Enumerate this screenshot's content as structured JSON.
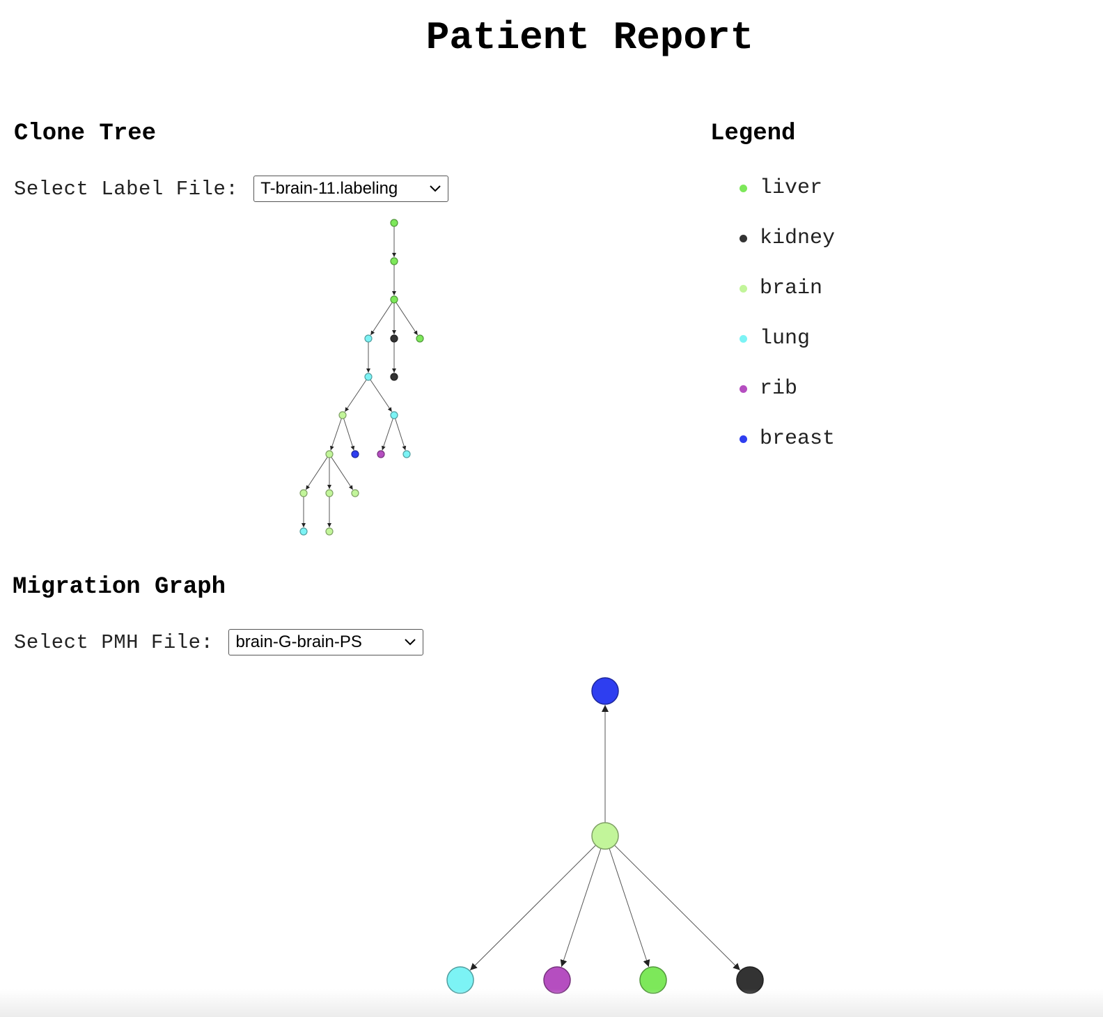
{
  "page": {
    "title": "Patient Report"
  },
  "colors": {
    "liver": "#7de85a",
    "kidney": "#333333",
    "brain": "#c2f59a",
    "lung": "#7cf3f5",
    "rib": "#b54ec0",
    "breast": "#2e3ef0"
  },
  "clone_tree": {
    "heading": "Clone Tree",
    "select_label": "Select Label File:",
    "selected_file": "T-brain-11.labeling",
    "nodes": [
      {
        "id": "n1",
        "tissue": "liver"
      },
      {
        "id": "n2",
        "tissue": "liver"
      },
      {
        "id": "n3",
        "tissue": "liver"
      },
      {
        "id": "n4",
        "tissue": "lung"
      },
      {
        "id": "n5",
        "tissue": "kidney"
      },
      {
        "id": "n6",
        "tissue": "liver"
      },
      {
        "id": "n7",
        "tissue": "lung"
      },
      {
        "id": "n8",
        "tissue": "kidney"
      },
      {
        "id": "n9",
        "tissue": "brain"
      },
      {
        "id": "n10",
        "tissue": "lung"
      },
      {
        "id": "n11",
        "tissue": "brain"
      },
      {
        "id": "n12",
        "tissue": "breast"
      },
      {
        "id": "n13",
        "tissue": "rib"
      },
      {
        "id": "n14",
        "tissue": "lung"
      },
      {
        "id": "n15",
        "tissue": "brain"
      },
      {
        "id": "n16",
        "tissue": "brain"
      },
      {
        "id": "n17",
        "tissue": "brain"
      },
      {
        "id": "n18",
        "tissue": "lung"
      },
      {
        "id": "n19",
        "tissue": "brain"
      }
    ],
    "edges": [
      [
        "n1",
        "n2"
      ],
      [
        "n2",
        "n3"
      ],
      [
        "n3",
        "n4"
      ],
      [
        "n3",
        "n5"
      ],
      [
        "n3",
        "n6"
      ],
      [
        "n4",
        "n7"
      ],
      [
        "n5",
        "n8"
      ],
      [
        "n7",
        "n9"
      ],
      [
        "n7",
        "n10"
      ],
      [
        "n9",
        "n11"
      ],
      [
        "n9",
        "n12"
      ],
      [
        "n10",
        "n13"
      ],
      [
        "n10",
        "n14"
      ],
      [
        "n11",
        "n15"
      ],
      [
        "n11",
        "n16"
      ],
      [
        "n11",
        "n17"
      ],
      [
        "n15",
        "n18"
      ],
      [
        "n16",
        "n19"
      ]
    ]
  },
  "legend": {
    "heading": "Legend",
    "items": [
      {
        "label": "liver",
        "tissue": "liver"
      },
      {
        "label": "kidney",
        "tissue": "kidney"
      },
      {
        "label": "brain",
        "tissue": "brain"
      },
      {
        "label": "lung",
        "tissue": "lung"
      },
      {
        "label": "rib",
        "tissue": "rib"
      },
      {
        "label": "breast",
        "tissue": "breast"
      }
    ]
  },
  "migration_graph": {
    "heading": "Migration Graph",
    "select_label": "Select PMH File:",
    "selected_file": "brain-G-brain-PS",
    "nodes": [
      {
        "id": "m-brain",
        "tissue": "brain"
      },
      {
        "id": "m-breast",
        "tissue": "breast"
      },
      {
        "id": "m-lung",
        "tissue": "lung"
      },
      {
        "id": "m-rib",
        "tissue": "rib"
      },
      {
        "id": "m-liver",
        "tissue": "liver"
      },
      {
        "id": "m-kidney",
        "tissue": "kidney"
      }
    ],
    "edges": [
      [
        "m-brain",
        "m-breast"
      ],
      [
        "m-brain",
        "m-lung"
      ],
      [
        "m-brain",
        "m-rib"
      ],
      [
        "m-brain",
        "m-liver"
      ],
      [
        "m-brain",
        "m-kidney"
      ]
    ]
  }
}
